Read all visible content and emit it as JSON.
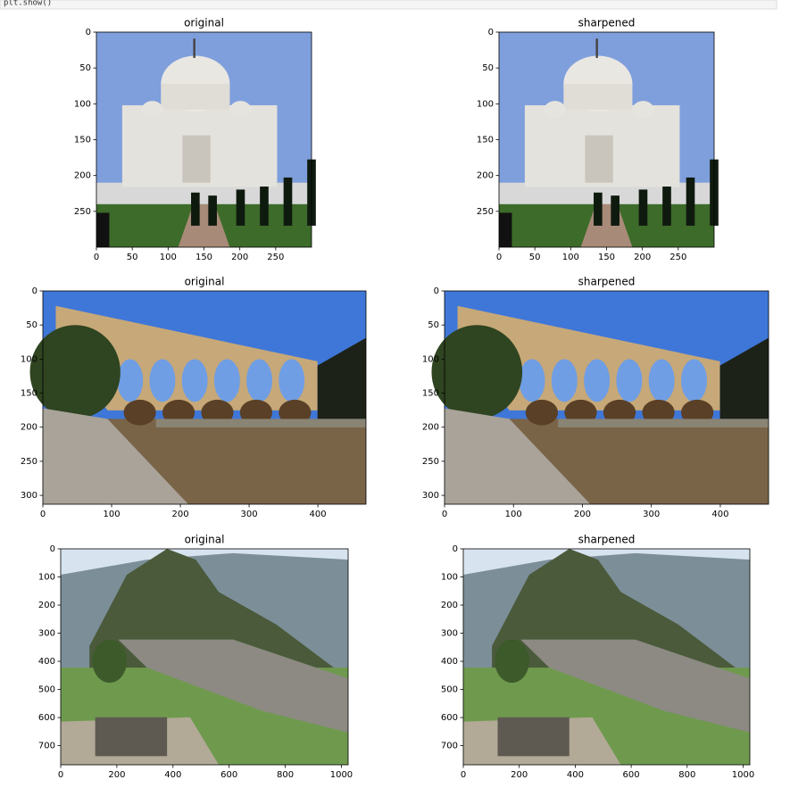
{
  "code": "plt.show()",
  "chart_data": [
    {
      "type": "image",
      "title": "original",
      "xlim": [
        0,
        300
      ],
      "ylim": [
        300,
        0
      ],
      "xticks": [
        0,
        50,
        100,
        150,
        200,
        250
      ],
      "yticks": [
        0,
        50,
        100,
        150,
        200,
        250
      ]
    },
    {
      "type": "image",
      "title": "sharpened",
      "xlim": [
        0,
        300
      ],
      "ylim": [
        300,
        0
      ],
      "xticks": [
        0,
        50,
        100,
        150,
        200,
        250
      ],
      "yticks": [
        0,
        50,
        100,
        150,
        200,
        250
      ]
    },
    {
      "type": "image",
      "title": "original",
      "xlim": [
        0,
        470
      ],
      "ylim": [
        313,
        0
      ],
      "xticks": [
        0,
        100,
        200,
        300,
        400
      ],
      "yticks": [
        0,
        50,
        100,
        150,
        200,
        250,
        300
      ]
    },
    {
      "type": "image",
      "title": "sharpened",
      "xlim": [
        0,
        470
      ],
      "ylim": [
        313,
        0
      ],
      "xticks": [
        0,
        100,
        200,
        300,
        400
      ],
      "yticks": [
        0,
        50,
        100,
        150,
        200,
        250,
        300
      ]
    },
    {
      "type": "image",
      "title": "original",
      "xlim": [
        0,
        1024
      ],
      "ylim": [
        768,
        0
      ],
      "xticks": [
        0,
        200,
        400,
        600,
        800,
        1000
      ],
      "yticks": [
        0,
        100,
        200,
        300,
        400,
        500,
        600,
        700
      ]
    },
    {
      "type": "image",
      "title": "sharpened",
      "xlim": [
        0,
        1024
      ],
      "ylim": [
        768,
        0
      ],
      "xticks": [
        0,
        200,
        400,
        600,
        800,
        1000
      ],
      "yticks": [
        0,
        100,
        200,
        300,
        400,
        500,
        600,
        700
      ]
    }
  ]
}
